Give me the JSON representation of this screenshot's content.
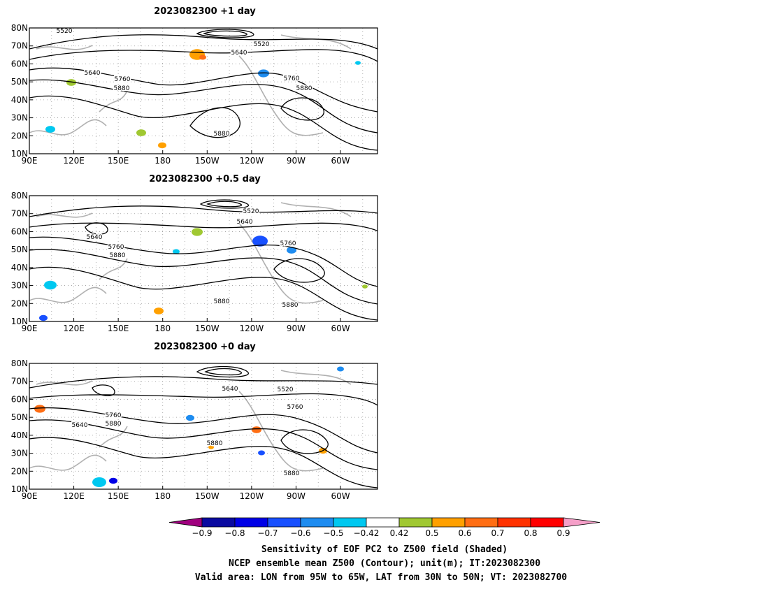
{
  "chart_data": [
    {
      "type": "contour",
      "title": "2023082300  +1 day",
      "x_ticks": [
        "90E",
        "120E",
        "150E",
        "180",
        "150W",
        "120W",
        "90W",
        "60W"
      ],
      "y_ticks": [
        "10N",
        "20N",
        "30N",
        "40N",
        "50N",
        "60N",
        "70N",
        "80N"
      ],
      "xlim": [
        90,
        325
      ],
      "ylim": [
        10,
        80
      ],
      "contour_labels": [
        "5520",
        "5520",
        "5640",
        "5640",
        "5760",
        "5760",
        "5880",
        "5880",
        "5880"
      ]
    },
    {
      "type": "contour",
      "title": "2023082300  +0.5 day",
      "x_ticks": [
        "90E",
        "120E",
        "150E",
        "180",
        "150W",
        "120W",
        "90W",
        "60W"
      ],
      "y_ticks": [
        "10N",
        "20N",
        "30N",
        "40N",
        "50N",
        "60N",
        "70N",
        "80N"
      ],
      "xlim": [
        90,
        325
      ],
      "ylim": [
        10,
        80
      ],
      "contour_labels": [
        "5520",
        "5640",
        "5640",
        "5760",
        "5760",
        "5880",
        "5880",
        "5880"
      ]
    },
    {
      "type": "contour",
      "title": "2023082300  +0 day",
      "x_ticks": [
        "90E",
        "120E",
        "150E",
        "180",
        "150W",
        "120W",
        "90W",
        "60W"
      ],
      "y_ticks": [
        "10N",
        "20N",
        "30N",
        "40N",
        "50N",
        "60N",
        "70N",
        "80N"
      ],
      "xlim": [
        90,
        325
      ],
      "ylim": [
        10,
        80
      ],
      "contour_labels": [
        "5640",
        "5520",
        "5760",
        "5640",
        "5760",
        "5880",
        "5880",
        "5880"
      ]
    }
  ],
  "colorbar": {
    "tick_labels": [
      "−0.9",
      "−0.8",
      "−0.7",
      "−0.6",
      "−0.5",
      "−0.42",
      "0.42",
      "0.5",
      "0.6",
      "0.7",
      "0.8",
      "0.9"
    ],
    "colors": [
      "#a0007f",
      "#0a0aa0",
      "#0000e6",
      "#1850ff",
      "#1e8cf0",
      "#00c8f0",
      "#ffffff",
      "#a0c832",
      "#ffa000",
      "#ff6e14",
      "#ff3200",
      "#ff0000",
      "#f59fc8"
    ]
  },
  "caption": {
    "line1": "Sensitivity of EOF PC2 to Z500 field (Shaded)",
    "line2": "NCEP ensemble mean Z500 (Contour); unit(m); IT:2023082300",
    "line3": "Valid area: LON from 95W to 65W, LAT from 30N to 50N; VT: 2023082700"
  }
}
